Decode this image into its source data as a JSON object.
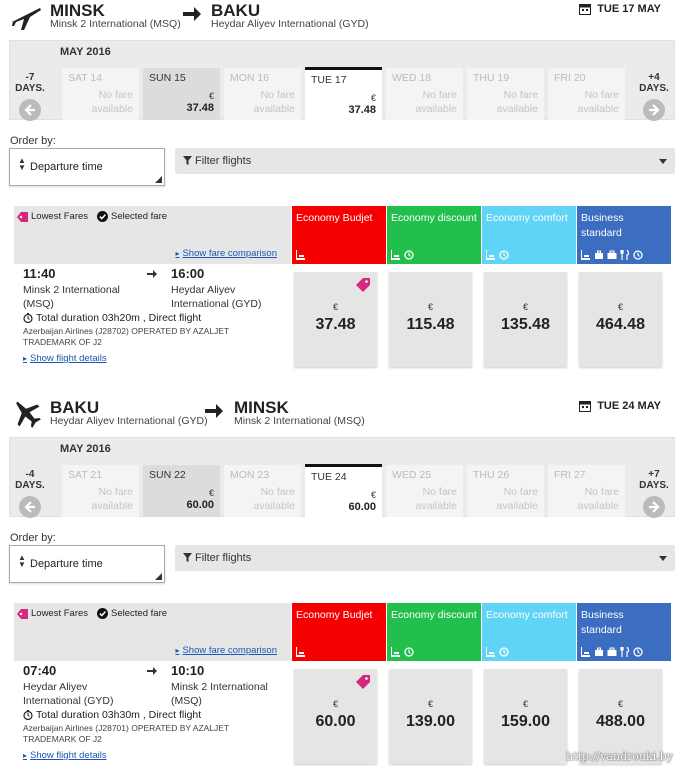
{
  "colors": {
    "budget": "#f40000",
    "discount": "#22bf4c",
    "comfort": "#5fd4f7",
    "business": "#3b6dc0",
    "tag": "#d32a80",
    "link": "#1a57b2"
  },
  "fare_header": {
    "lowest_fares": "Lowest Fares",
    "selected_fare": "Selected fare",
    "show_comparison": "Show fare comparison",
    "classes": [
      {
        "label": "Economy Budjet",
        "icons": [
          "seat-icon"
        ]
      },
      {
        "label": "Economy discount",
        "icons": [
          "seat-icon",
          "refund-icon"
        ]
      },
      {
        "label": "Economy comfort",
        "icons": [
          "seat-icon",
          "refund-icon"
        ]
      },
      {
        "label": "Business standard",
        "icons": [
          "seat-icon",
          "bag-icon",
          "briefcase-icon",
          "meal-icon",
          "refund-icon"
        ]
      }
    ]
  },
  "order": {
    "label": "Order by:",
    "value": "Departure time"
  },
  "filter": {
    "label": "Filter flights"
  },
  "outbound": {
    "from_city": "MINSK",
    "from_airport": "Minsk 2 International (MSQ)",
    "to_city": "BAKU",
    "to_airport": "Heydar Aliyev International (GYD)",
    "date": "TUE 17 MAY",
    "month": "MAY 2016",
    "prev_label": "-7 DAYS.",
    "next_label": "+4 DAYS.",
    "days": [
      {
        "name": "SAT 14",
        "no_fare": "No fare available"
      },
      {
        "name": "SUN 15",
        "currency": "€",
        "price": "37.48"
      },
      {
        "name": "MON 16",
        "no_fare": "No fare available"
      },
      {
        "name": "TUE 17",
        "currency": "€",
        "price": "37.48",
        "selected": true
      },
      {
        "name": "WED 18",
        "no_fare": "No fare available"
      },
      {
        "name": "THU 19",
        "no_fare": "No fare available"
      },
      {
        "name": "FRI 20",
        "no_fare": "No fare available"
      }
    ],
    "flight": {
      "dep_time": "11:40",
      "dep_airport": "Minsk 2 International (MSQ)",
      "arr_time": "16:00",
      "arr_airport": "Heydar Aliyev International (GYD)",
      "duration": "Total duration 03h20m , Direct flight",
      "operator_name": "Azerbaijan Airlines (J28702)",
      "operator_note": " OPERATED BY AZALJET TRADEMARK OF J2",
      "details_link": "Show flight details"
    },
    "prices": [
      {
        "currency": "€",
        "value": "37.48",
        "lowest": true
      },
      {
        "currency": "€",
        "value": "115.48"
      },
      {
        "currency": "€",
        "value": "135.48"
      },
      {
        "currency": "€",
        "value": "464.48"
      }
    ]
  },
  "return": {
    "from_city": "BAKU",
    "from_airport": "Heydar Aliyev International (GYD)",
    "to_city": "MINSK",
    "to_airport": "Minsk 2 International (MSQ)",
    "date": "TUE 24 MAY",
    "month": "MAY 2016",
    "prev_label": "-4 DAYS.",
    "next_label": "+7 DAYS.",
    "days": [
      {
        "name": "SAT 21",
        "no_fare": "No fare available"
      },
      {
        "name": "SUN 22",
        "currency": "€",
        "price": "60.00"
      },
      {
        "name": "MON 23",
        "no_fare": "No fare available"
      },
      {
        "name": "TUE 24",
        "currency": "€",
        "price": "60.00",
        "selected": true
      },
      {
        "name": "WED 25",
        "no_fare": "No fare available"
      },
      {
        "name": "THU 26",
        "no_fare": "No fare available"
      },
      {
        "name": "FRI 27",
        "no_fare": "No fare available"
      }
    ],
    "flight": {
      "dep_time": "07:40",
      "dep_airport": "Heydar Aliyev International (GYD)",
      "arr_time": "10:10",
      "arr_airport": "Minsk 2 International (MSQ)",
      "duration": "Total duration 03h30m , Direct flight",
      "operator_name": "Azerbaijan Airlines (J28701)",
      "operator_note": " OPERATED BY AZALJET TRADEMARK OF J2",
      "details_link": "Show flight details"
    },
    "prices": [
      {
        "currency": "€",
        "value": "60.00",
        "lowest": true
      },
      {
        "currency": "€",
        "value": "139.00"
      },
      {
        "currency": "€",
        "value": "159.00"
      },
      {
        "currency": "€",
        "value": "488.00"
      }
    ]
  },
  "watermark": "http://vandrouki.by"
}
